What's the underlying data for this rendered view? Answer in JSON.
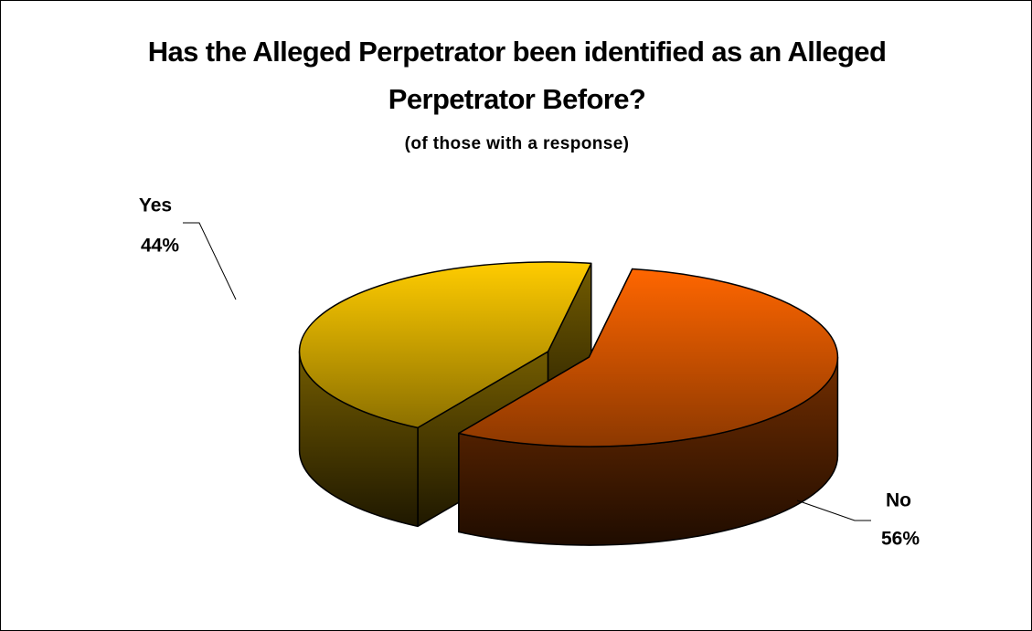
{
  "chart_data": {
    "type": "pie",
    "title": "Has the Alleged Perpetrator been identified as an Alleged Perpetrator Before?",
    "subtitle": "(of those with a response)",
    "categories": [
      "Yes",
      "No"
    ],
    "values": [
      44,
      56
    ],
    "value_labels": [
      "44%",
      "56%"
    ],
    "colors": [
      "#ffcc00",
      "#ff6600"
    ]
  }
}
